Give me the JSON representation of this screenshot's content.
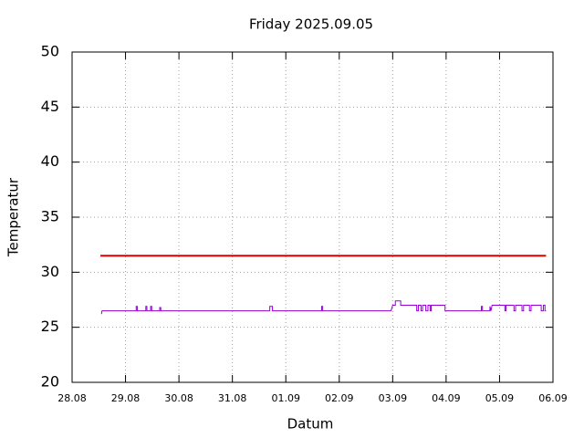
{
  "chart_data": {
    "type": "line",
    "title": "Friday 2025.09.05",
    "xlabel": "Datum",
    "ylabel": "Temperatur",
    "xlim": [
      0,
      9
    ],
    "xticks": [
      {
        "value": 0,
        "label": "28.08"
      },
      {
        "value": 1,
        "label": "29.08"
      },
      {
        "value": 2,
        "label": "30.08"
      },
      {
        "value": 3,
        "label": "31.08"
      },
      {
        "value": 4,
        "label": "01.09"
      },
      {
        "value": 5,
        "label": "02.09"
      },
      {
        "value": 6,
        "label": "03.09"
      },
      {
        "value": 7,
        "label": "04.09"
      },
      {
        "value": 8,
        "label": "05.09"
      },
      {
        "value": 9,
        "label": "06.09"
      }
    ],
    "ylim": [
      20,
      50
    ],
    "yticks": [
      20,
      25,
      30,
      35,
      40,
      45,
      50
    ],
    "grid": true,
    "series": [
      {
        "color": "#e00000",
        "x": [
          0.53,
          8.87
        ],
        "values": [
          31.5,
          31.5
        ]
      },
      {
        "color": "#9400d3",
        "x": [
          0.55,
          0.56,
          1.2,
          1.2,
          1.22,
          1.22,
          1.38,
          1.38,
          1.4,
          1.4,
          1.47,
          1.47,
          1.49,
          1.49,
          1.64,
          1.64,
          1.66,
          1.66,
          3.7,
          3.7,
          3.75,
          3.75,
          4.67,
          4.67,
          4.69,
          4.69,
          5.97,
          6.0,
          6.05,
          6.05,
          6.15,
          6.15,
          6.45,
          6.45,
          6.48,
          6.48,
          6.53,
          6.53,
          6.56,
          6.56,
          6.62,
          6.62,
          6.66,
          6.66,
          6.7,
          6.7,
          6.72,
          6.72,
          6.98,
          6.98,
          7.66,
          7.66,
          7.68,
          7.68,
          7.82,
          7.82,
          7.84,
          7.86,
          8.1,
          8.1,
          8.12,
          8.12,
          8.27,
          8.27,
          8.3,
          8.3,
          8.42,
          8.42,
          8.45,
          8.45,
          8.56,
          8.56,
          8.59,
          8.59,
          8.78,
          8.78,
          8.82,
          8.82,
          8.85,
          8.85,
          8.87
        ],
        "values": [
          26.2,
          26.5,
          26.5,
          26.9,
          26.9,
          26.5,
          26.5,
          26.9,
          26.9,
          26.5,
          26.5,
          26.9,
          26.9,
          26.5,
          26.5,
          26.8,
          26.8,
          26.5,
          26.5,
          26.9,
          26.9,
          26.5,
          26.5,
          26.9,
          26.9,
          26.5,
          26.5,
          27,
          27,
          27.4,
          27.4,
          27,
          27,
          26.5,
          26.5,
          27,
          27,
          26.5,
          26.5,
          27,
          27,
          26.5,
          26.5,
          27,
          27,
          26.5,
          26.5,
          27,
          27,
          26.5,
          26.5,
          26.9,
          26.9,
          26.5,
          26.5,
          26.9,
          26.5,
          27,
          27,
          26.5,
          26.5,
          27,
          27,
          26.5,
          26.5,
          27,
          27,
          26.5,
          26.5,
          27,
          27,
          26.5,
          26.5,
          27,
          27,
          26.5,
          26.5,
          27,
          27,
          26.5,
          26.5
        ]
      }
    ]
  }
}
